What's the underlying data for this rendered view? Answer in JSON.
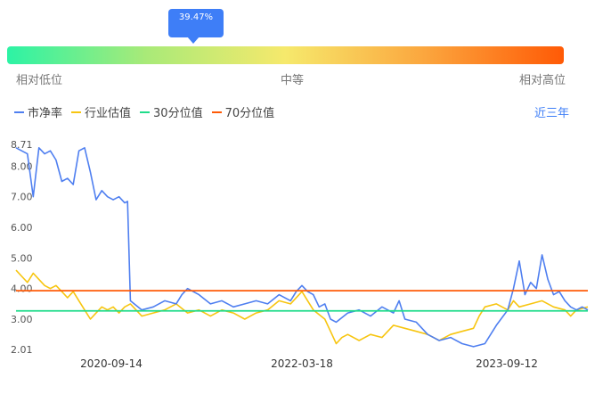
{
  "gauge": {
    "percentile_label": "39.47%",
    "percentile": 0.3947,
    "labels": {
      "low": "相对低位",
      "mid": "中等",
      "high": "相对高位"
    }
  },
  "legend": [
    {
      "name": "市净率",
      "color": "#4f7ff0"
    },
    {
      "name": "行业估值",
      "color": "#f7c510"
    },
    {
      "name": "30分位值",
      "color": "#1fdc8a"
    },
    {
      "name": "70分位值",
      "color": "#ff5a06"
    }
  ],
  "period_label": "近三年",
  "chart_data": {
    "type": "line",
    "x_ticks": [
      "2020-09-14",
      "2022-03-18",
      "2023-09-12"
    ],
    "y_ticks": [
      "2.01",
      "3.00",
      "4.00",
      "5.00",
      "6.00",
      "7.00",
      "8.00",
      "8.71"
    ],
    "ylim": [
      2.01,
      8.71
    ],
    "series": [
      {
        "name": "市净率",
        "color": "#4f7ff0",
        "points": [
          [
            0,
            8.6
          ],
          [
            0.01,
            8.5
          ],
          [
            0.02,
            8.4
          ],
          [
            0.03,
            7.0
          ],
          [
            0.04,
            8.6
          ],
          [
            0.05,
            8.4
          ],
          [
            0.06,
            8.5
          ],
          [
            0.07,
            8.2
          ],
          [
            0.08,
            7.5
          ],
          [
            0.09,
            7.6
          ],
          [
            0.1,
            7.4
          ],
          [
            0.11,
            8.5
          ],
          [
            0.12,
            8.6
          ],
          [
            0.13,
            7.8
          ],
          [
            0.14,
            6.9
          ],
          [
            0.15,
            7.2
          ],
          [
            0.16,
            7.0
          ],
          [
            0.17,
            6.9
          ],
          [
            0.18,
            7.0
          ],
          [
            0.19,
            6.8
          ],
          [
            0.195,
            6.85
          ],
          [
            0.2,
            3.6
          ],
          [
            0.22,
            3.3
          ],
          [
            0.24,
            3.4
          ],
          [
            0.26,
            3.6
          ],
          [
            0.28,
            3.5
          ],
          [
            0.29,
            3.8
          ],
          [
            0.3,
            4.0
          ],
          [
            0.32,
            3.8
          ],
          [
            0.34,
            3.5
          ],
          [
            0.36,
            3.6
          ],
          [
            0.38,
            3.4
          ],
          [
            0.4,
            3.5
          ],
          [
            0.42,
            3.6
          ],
          [
            0.44,
            3.5
          ],
          [
            0.46,
            3.8
          ],
          [
            0.48,
            3.6
          ],
          [
            0.49,
            3.9
          ],
          [
            0.5,
            4.1
          ],
          [
            0.51,
            3.9
          ],
          [
            0.52,
            3.8
          ],
          [
            0.53,
            3.4
          ],
          [
            0.54,
            3.5
          ],
          [
            0.55,
            3.0
          ],
          [
            0.56,
            2.9
          ],
          [
            0.58,
            3.2
          ],
          [
            0.6,
            3.3
          ],
          [
            0.62,
            3.1
          ],
          [
            0.64,
            3.4
          ],
          [
            0.66,
            3.2
          ],
          [
            0.67,
            3.6
          ],
          [
            0.68,
            3.0
          ],
          [
            0.7,
            2.9
          ],
          [
            0.72,
            2.5
          ],
          [
            0.74,
            2.3
          ],
          [
            0.76,
            2.4
          ],
          [
            0.78,
            2.2
          ],
          [
            0.8,
            2.1
          ],
          [
            0.82,
            2.2
          ],
          [
            0.84,
            2.8
          ],
          [
            0.86,
            3.3
          ],
          [
            0.87,
            4.0
          ],
          [
            0.88,
            4.9
          ],
          [
            0.89,
            3.8
          ],
          [
            0.9,
            4.2
          ],
          [
            0.91,
            4.0
          ],
          [
            0.92,
            5.1
          ],
          [
            0.93,
            4.3
          ],
          [
            0.94,
            3.8
          ],
          [
            0.95,
            3.9
          ],
          [
            0.96,
            3.6
          ],
          [
            0.97,
            3.4
          ],
          [
            0.98,
            3.3
          ],
          [
            0.99,
            3.4
          ],
          [
            1.0,
            3.3
          ]
        ]
      },
      {
        "name": "行业估值",
        "color": "#f7c510",
        "points": [
          [
            0,
            4.6
          ],
          [
            0.01,
            4.4
          ],
          [
            0.02,
            4.2
          ],
          [
            0.03,
            4.5
          ],
          [
            0.04,
            4.3
          ],
          [
            0.05,
            4.1
          ],
          [
            0.06,
            4.0
          ],
          [
            0.07,
            4.1
          ],
          [
            0.08,
            3.9
          ],
          [
            0.09,
            3.7
          ],
          [
            0.1,
            3.9
          ],
          [
            0.11,
            3.6
          ],
          [
            0.12,
            3.3
          ],
          [
            0.13,
            3.0
          ],
          [
            0.14,
            3.2
          ],
          [
            0.15,
            3.4
          ],
          [
            0.16,
            3.3
          ],
          [
            0.17,
            3.4
          ],
          [
            0.18,
            3.2
          ],
          [
            0.19,
            3.4
          ],
          [
            0.2,
            3.5
          ],
          [
            0.22,
            3.1
          ],
          [
            0.24,
            3.2
          ],
          [
            0.26,
            3.3
          ],
          [
            0.28,
            3.5
          ],
          [
            0.3,
            3.2
          ],
          [
            0.32,
            3.3
          ],
          [
            0.34,
            3.1
          ],
          [
            0.36,
            3.3
          ],
          [
            0.38,
            3.2
          ],
          [
            0.4,
            3.0
          ],
          [
            0.42,
            3.2
          ],
          [
            0.44,
            3.3
          ],
          [
            0.46,
            3.6
          ],
          [
            0.48,
            3.5
          ],
          [
            0.5,
            3.9
          ],
          [
            0.51,
            3.6
          ],
          [
            0.52,
            3.3
          ],
          [
            0.54,
            3.0
          ],
          [
            0.55,
            2.6
          ],
          [
            0.56,
            2.2
          ],
          [
            0.57,
            2.4
          ],
          [
            0.58,
            2.5
          ],
          [
            0.6,
            2.3
          ],
          [
            0.62,
            2.5
          ],
          [
            0.64,
            2.4
          ],
          [
            0.66,
            2.8
          ],
          [
            0.68,
            2.7
          ],
          [
            0.7,
            2.6
          ],
          [
            0.72,
            2.5
          ],
          [
            0.74,
            2.3
          ],
          [
            0.76,
            2.5
          ],
          [
            0.78,
            2.6
          ],
          [
            0.8,
            2.7
          ],
          [
            0.81,
            3.1
          ],
          [
            0.82,
            3.4
          ],
          [
            0.84,
            3.5
          ],
          [
            0.86,
            3.3
          ],
          [
            0.87,
            3.6
          ],
          [
            0.88,
            3.4
          ],
          [
            0.9,
            3.5
          ],
          [
            0.92,
            3.6
          ],
          [
            0.94,
            3.4
          ],
          [
            0.96,
            3.3
          ],
          [
            0.97,
            3.1
          ],
          [
            0.98,
            3.3
          ],
          [
            1.0,
            3.4
          ]
        ]
      },
      {
        "name": "30分位值",
        "color": "#1fdc8a",
        "constant": 3.27
      },
      {
        "name": "70分位值",
        "color": "#ff5a06",
        "constant": 3.93
      }
    ]
  }
}
